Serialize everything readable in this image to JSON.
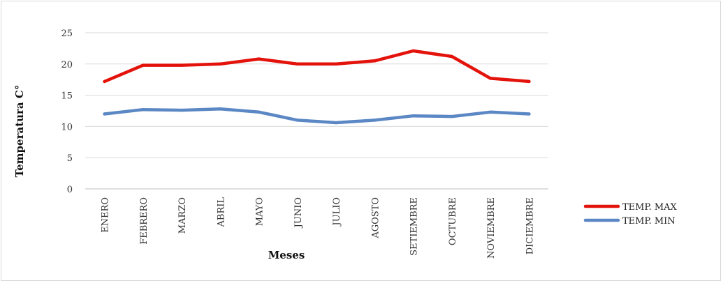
{
  "chart_data": {
    "type": "line",
    "title": "",
    "xlabel": "Meses",
    "ylabel": "Temperatura C°",
    "categories": [
      "ENERO",
      "FEBRERO",
      "MARZO",
      "ABRIL",
      "MAYO",
      "JUNIO",
      "JULIO",
      "AGOSTO",
      "SETIEMBRE",
      "OCTUBRE",
      "NOVIEMBRE",
      "DICIEMBRE"
    ],
    "ylim": [
      0,
      25
    ],
    "yticks": [
      "0",
      "5",
      "10",
      "15",
      "20",
      "25"
    ],
    "grid": true,
    "legend_position": "right",
    "series": [
      {
        "name": "TEMP. MAX",
        "color": "#e3120b",
        "values": [
          17.2,
          19.8,
          19.8,
          20.0,
          20.8,
          20.0,
          20.0,
          20.5,
          22.1,
          21.2,
          17.7,
          17.2
        ]
      },
      {
        "name": "TEMP. MIN",
        "color": "#5b88c4",
        "values": [
          12.0,
          12.7,
          12.6,
          12.8,
          12.3,
          11.0,
          10.6,
          11.0,
          11.7,
          11.6,
          12.3,
          12.0
        ]
      }
    ]
  }
}
